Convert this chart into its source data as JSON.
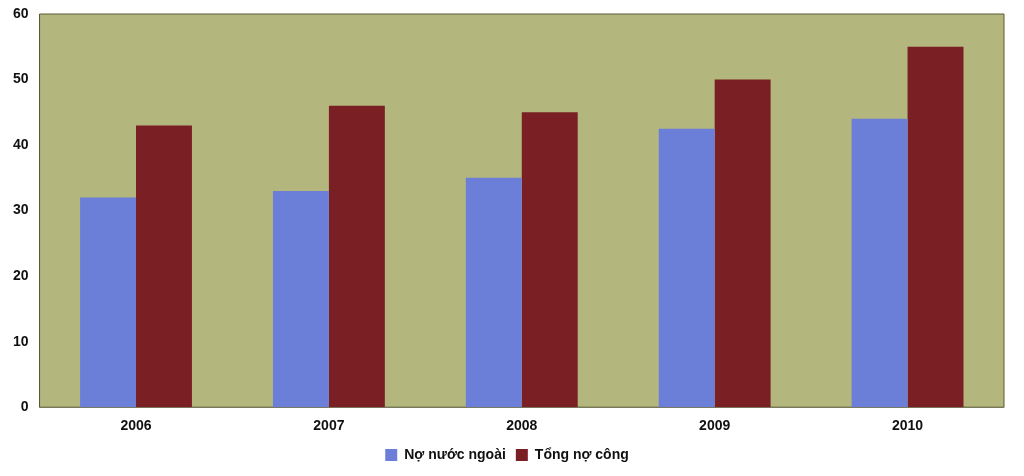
{
  "chart_data": {
    "type": "bar",
    "categories": [
      "2006",
      "2007",
      "2008",
      "2009",
      "2010"
    ],
    "series": [
      {
        "name": "Nợ nước ngoài",
        "color": "#6b7fd8",
        "values": [
          32,
          33,
          35,
          42.5,
          44
        ]
      },
      {
        "name": "Tổng nợ công",
        "color": "#7a1f24",
        "values": [
          43,
          46,
          45,
          50,
          55
        ]
      }
    ],
    "ylim": [
      0,
      60
    ],
    "yticks": [
      0,
      10,
      20,
      30,
      40,
      50,
      60
    ],
    "grid": false,
    "legend": "bottom"
  }
}
